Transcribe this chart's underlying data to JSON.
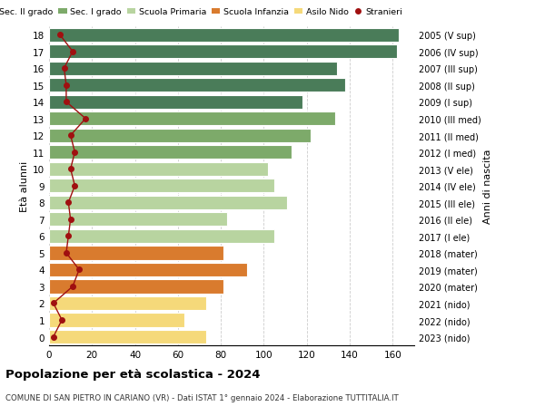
{
  "ages": [
    18,
    17,
    16,
    15,
    14,
    13,
    12,
    11,
    10,
    9,
    8,
    7,
    6,
    5,
    4,
    3,
    2,
    1,
    0
  ],
  "years_labels": [
    "2005 (V sup)",
    "2006 (IV sup)",
    "2007 (III sup)",
    "2008 (II sup)",
    "2009 (I sup)",
    "2010 (III med)",
    "2011 (II med)",
    "2012 (I med)",
    "2013 (V ele)",
    "2014 (IV ele)",
    "2015 (III ele)",
    "2016 (II ele)",
    "2017 (I ele)",
    "2018 (mater)",
    "2019 (mater)",
    "2020 (mater)",
    "2021 (nido)",
    "2022 (nido)",
    "2023 (nido)"
  ],
  "bar_values": [
    163,
    162,
    134,
    138,
    118,
    133,
    122,
    113,
    102,
    105,
    111,
    83,
    105,
    81,
    92,
    81,
    73,
    63,
    73
  ],
  "bar_colors": [
    "#4a7c59",
    "#4a7c59",
    "#4a7c59",
    "#4a7c59",
    "#4a7c59",
    "#7daa6a",
    "#7daa6a",
    "#7daa6a",
    "#b8d4a0",
    "#b8d4a0",
    "#b8d4a0",
    "#b8d4a0",
    "#b8d4a0",
    "#d97b2e",
    "#d97b2e",
    "#d97b2e",
    "#f5d97a",
    "#f5d97a",
    "#f5d97a"
  ],
  "stranieri_values": [
    5,
    11,
    7,
    8,
    8,
    17,
    10,
    12,
    10,
    12,
    9,
    10,
    9,
    8,
    14,
    11,
    2,
    6,
    2
  ],
  "stranieri_color": "#a01010",
  "legend_labels": [
    "Sec. II grado",
    "Sec. I grado",
    "Scuola Primaria",
    "Scuola Infanzia",
    "Asilo Nido",
    "Stranieri"
  ],
  "legend_colors": [
    "#4a7c59",
    "#7daa6a",
    "#b8d4a0",
    "#d97b2e",
    "#f5d97a",
    "#a01010"
  ],
  "ylabel_left": "Età alunni",
  "ylabel_right": "Anni di nascita",
  "title": "Popolazione per età scolastica - 2024",
  "subtitle": "COMUNE DI SAN PIETRO IN CARIANO (VR) - Dati ISTAT 1° gennaio 2024 - Elaborazione TUTTITALIA.IT",
  "xlim": [
    0,
    170
  ],
  "xticks": [
    0,
    20,
    40,
    60,
    80,
    100,
    120,
    140,
    160
  ],
  "background_color": "#ffffff",
  "grid_color": "#cccccc"
}
